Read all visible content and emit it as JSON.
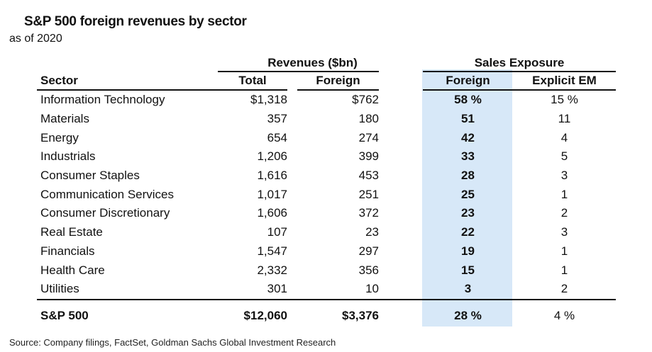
{
  "title": "S&P 500 foreign revenues by sector",
  "subtitle": "as of 2020",
  "groups": {
    "revenues": "Revenues  ($bn)",
    "sales_exposure": "Sales Exposure"
  },
  "headers": {
    "sector": "Sector",
    "total": "Total",
    "foreign": "Foreign",
    "sales_foreign": "Foreign",
    "explicit_em": "Explicit EM"
  },
  "rows": [
    {
      "sector": "Information Technology",
      "total": "$1,318",
      "foreign": "$762",
      "sales_foreign": "58 %",
      "explicit_em": "15 %"
    },
    {
      "sector": "Materials",
      "total": "357",
      "foreign": "180",
      "sales_foreign": "51",
      "explicit_em": "11"
    },
    {
      "sector": "Energy",
      "total": "654",
      "foreign": "274",
      "sales_foreign": "42",
      "explicit_em": "4"
    },
    {
      "sector": "Industrials",
      "total": "1,206",
      "foreign": "399",
      "sales_foreign": "33",
      "explicit_em": "5"
    },
    {
      "sector": "Consumer Staples",
      "total": "1,616",
      "foreign": "453",
      "sales_foreign": "28",
      "explicit_em": "3"
    },
    {
      "sector": "Communication Services",
      "total": "1,017",
      "foreign": "251",
      "sales_foreign": "25",
      "explicit_em": "1"
    },
    {
      "sector": "Consumer Discretionary",
      "total": "1,606",
      "foreign": "372",
      "sales_foreign": "23",
      "explicit_em": "2"
    },
    {
      "sector": "Real Estate",
      "total": "107",
      "foreign": "23",
      "sales_foreign": "22",
      "explicit_em": "3"
    },
    {
      "sector": "Financials",
      "total": "1,547",
      "foreign": "297",
      "sales_foreign": "19",
      "explicit_em": "1"
    },
    {
      "sector": "Health Care",
      "total": "2,332",
      "foreign": "356",
      "sales_foreign": "15",
      "explicit_em": "1"
    },
    {
      "sector": "Utilities",
      "total": "301",
      "foreign": "10",
      "sales_foreign": "3",
      "explicit_em": "2"
    }
  ],
  "total_row": {
    "sector": "S&P 500",
    "total": "$12,060",
    "foreign": "$3,376",
    "sales_foreign": "28 %",
    "explicit_em": "4 %"
  },
  "source": "Source: Company filings, FactSet, Goldman Sachs Global Investment Research",
  "colors": {
    "highlight": "#d7e8f8",
    "text": "#111111"
  }
}
